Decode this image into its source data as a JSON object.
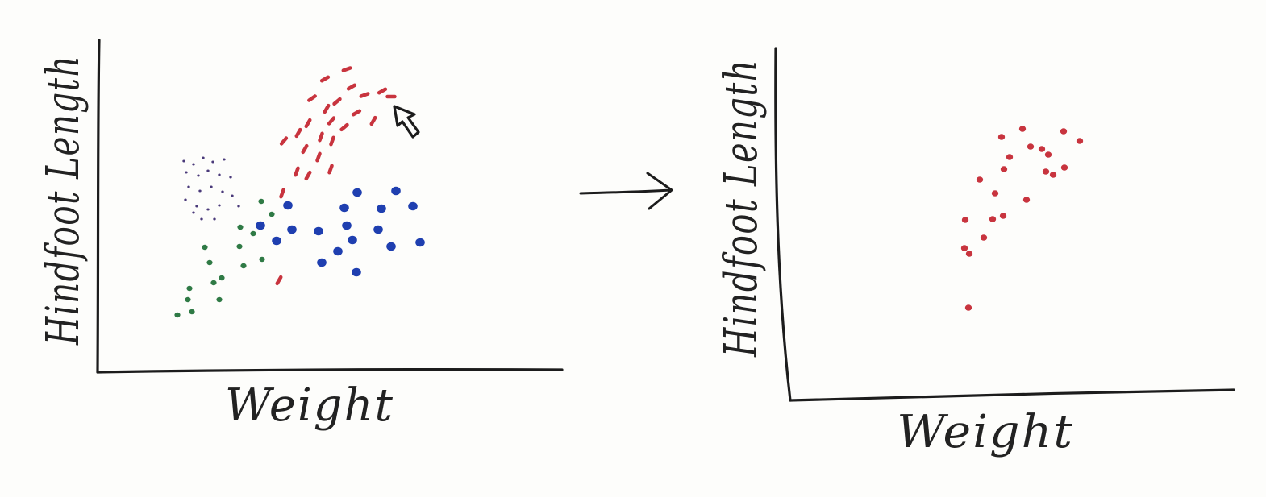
{
  "panels": [
    {
      "x_label": "Weight",
      "y_label": "Hindfoot Length",
      "groups": [
        {
          "color": "#c8343e",
          "marker": "dash"
        },
        {
          "color": "#1f3fb0",
          "marker": "dot-large"
        },
        {
          "color": "#2f7a45",
          "marker": "dot"
        },
        {
          "color": "#4a3a7a",
          "marker": "dot-small"
        }
      ]
    },
    {
      "x_label": "Weight",
      "y_label": "Hindfoot Length",
      "groups": [
        {
          "color": "#c8343e",
          "marker": "dot"
        }
      ]
    }
  ],
  "transition_icon": "right-arrow-icon",
  "pointer_icon": "mouse-cursor-icon"
}
